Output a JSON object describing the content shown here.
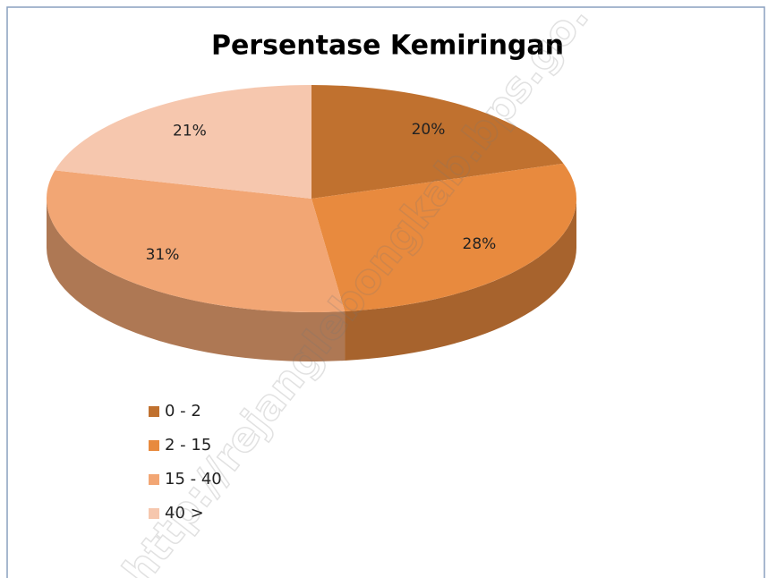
{
  "chart_data": {
    "type": "pie",
    "title": "Persentase Kemiringan",
    "categories": [
      "0 - 2",
      "2 - 15",
      "15 - 40",
      "40 >"
    ],
    "values": [
      20,
      28,
      31,
      21
    ],
    "value_labels": [
      "20%",
      "28%",
      "31%",
      "21%"
    ],
    "colors": [
      "#c0712f",
      "#e88a3e",
      "#f2a674",
      "#f6c7ae"
    ],
    "legend": "bottom-left",
    "watermark": "http://rejanglebongkab.bps.go."
  }
}
